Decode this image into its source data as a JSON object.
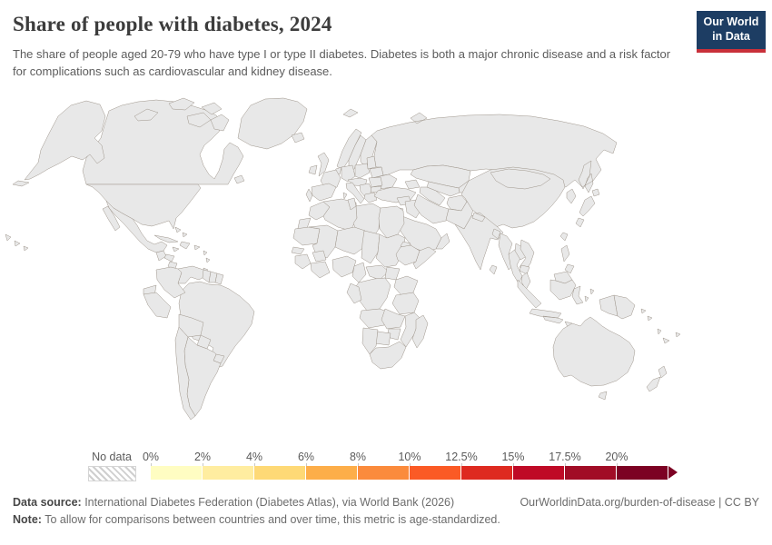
{
  "header": {
    "title": "Share of people with diabetes, 2024",
    "subtitle": "The share of people aged 20-79 who have type I or type II diabetes. Diabetes is both a major chronic disease and a risk factor for complications such as cardiovascular and kidney disease.",
    "logo": {
      "line1": "Our World",
      "line2": "in Data",
      "bg": "#1d3d63",
      "accent": "#c9303a"
    }
  },
  "legend": {
    "no_data_label": "No data",
    "tick_labels": [
      "0%",
      "2%",
      "4%",
      "6%",
      "8%",
      "10%",
      "12.5%",
      "15%",
      "17.5%",
      "20%"
    ],
    "palette": [
      "#fffdc2",
      "#ffeda0",
      "#fed976",
      "#fdae49",
      "#fb8b3c",
      "#fb5a25",
      "#de2a20",
      "#bf0a26",
      "#a10c26",
      "#7c0123"
    ]
  },
  "footer": {
    "source_label": "Data source:",
    "source_text": " International Diabetes Federation (Diabetes Atlas), via World Bank (2026)",
    "link_text": "OurWorldinData.org/burden-of-disease | CC BY",
    "note_label": "Note:",
    "note_text": " To allow for comparisons between countries and over time, this metric is age-standardized."
  },
  "chart_data": {
    "type": "choropleth-map",
    "title": "Share of people with diabetes, 2024",
    "unit": "% of people aged 20-79",
    "bins": [
      "0-2%",
      "2-4%",
      "4-6%",
      "6-8%",
      "8-10%",
      "10-12.5%",
      "12.5-15%",
      "15-17.5%",
      "17.5-20%",
      "20%+"
    ],
    "legend_position": "bottom",
    "regions_note": "bin is an index 0-9 into legend.palette; -1 means no data (hatched)"
  },
  "map": {
    "stroke": "#9d948a",
    "regions": [
      {
        "id": "greenland",
        "name": "Greenland",
        "bin": 2
      },
      {
        "id": "canada",
        "name": "Canada",
        "bin": 3
      },
      {
        "id": "canada-islands",
        "name": "Canada (Arctic islands)",
        "bin": 3
      },
      {
        "id": "svalbard",
        "name": "Svalbard",
        "bin": 3
      },
      {
        "id": "alaska",
        "name": "United States (Alaska)",
        "bin": 6
      },
      {
        "id": "usa",
        "name": "United States",
        "bin": 6
      },
      {
        "id": "hawaii",
        "name": "United States (Hawaii)",
        "bin": 6
      },
      {
        "id": "mexico",
        "name": "Mexico",
        "bin": 7
      },
      {
        "id": "guatemala",
        "name": "Guatemala",
        "bin": 7
      },
      {
        "id": "honduras",
        "name": "Honduras",
        "bin": 2
      },
      {
        "id": "nicaragua",
        "name": "Nicaragua",
        "bin": 4
      },
      {
        "id": "costa-panama",
        "name": "Costa Rica & Panama",
        "bin": 4
      },
      {
        "id": "cuba",
        "name": "Cuba",
        "bin": 5
      },
      {
        "id": "jamaica",
        "name": "Jamaica",
        "bin": 7
      },
      {
        "id": "hispaniola",
        "name": "Haiti & Dominican Republic",
        "bin": 8
      },
      {
        "id": "puerto-rico",
        "name": "Puerto Rico",
        "bin": 8
      },
      {
        "id": "bahamas",
        "name": "Bahamas",
        "bin": 3
      },
      {
        "id": "antilles",
        "name": "Lesser Antilles",
        "bin": 6
      },
      {
        "id": "trinidad",
        "name": "Trinidad and Tobago",
        "bin": 8
      },
      {
        "id": "colombia",
        "name": "Colombia",
        "bin": 4
      },
      {
        "id": "venezuela",
        "name": "Venezuela",
        "bin": 3
      },
      {
        "id": "guyana",
        "name": "Guyana",
        "bin": 8
      },
      {
        "id": "suriname",
        "name": "Suriname",
        "bin": -1
      },
      {
        "id": "french-guiana",
        "name": "French Guiana",
        "bin": 6
      },
      {
        "id": "ecuador",
        "name": "Ecuador",
        "bin": 1
      },
      {
        "id": "peru",
        "name": "Peru",
        "bin": 2
      },
      {
        "id": "brazil",
        "name": "Brazil",
        "bin": 5
      },
      {
        "id": "bolivia",
        "name": "Bolivia",
        "bin": 0
      },
      {
        "id": "paraguay",
        "name": "Paraguay",
        "bin": 4
      },
      {
        "id": "uruguay",
        "name": "Uruguay",
        "bin": 3
      },
      {
        "id": "argentina",
        "name": "Argentina",
        "bin": 6
      },
      {
        "id": "chile",
        "name": "Chile",
        "bin": 6
      },
      {
        "id": "iceland",
        "name": "Iceland",
        "bin": 3
      },
      {
        "id": "uk",
        "name": "United Kingdom",
        "bin": 3
      },
      {
        "id": "ireland",
        "name": "Ireland",
        "bin": 2
      },
      {
        "id": "norway",
        "name": "Norway",
        "bin": 3
      },
      {
        "id": "sweden",
        "name": "Sweden",
        "bin": 3
      },
      {
        "id": "finland",
        "name": "Finland",
        "bin": 3
      },
      {
        "id": "denmark",
        "name": "Denmark",
        "bin": 3
      },
      {
        "id": "benelux",
        "name": "Netherlands & Belgium",
        "bin": 4
      },
      {
        "id": "germany",
        "name": "Germany",
        "bin": 4
      },
      {
        "id": "poland",
        "name": "Poland",
        "bin": 4
      },
      {
        "id": "baltics",
        "name": "Baltic states",
        "bin": 3
      },
      {
        "id": "belarus",
        "name": "Belarus",
        "bin": 2
      },
      {
        "id": "ukraine",
        "name": "Ukraine",
        "bin": 2
      },
      {
        "id": "france",
        "name": "France",
        "bin": 3
      },
      {
        "id": "spain",
        "name": "Spain",
        "bin": 4
      },
      {
        "id": "portugal",
        "name": "Portugal",
        "bin": 5
      },
      {
        "id": "central-europe",
        "name": "Central Europe",
        "bin": 4
      },
      {
        "id": "italy",
        "name": "Italy",
        "bin": 4
      },
      {
        "id": "balkans",
        "name": "Balkans",
        "bin": 6
      },
      {
        "id": "romania",
        "name": "Romania",
        "bin": 4
      },
      {
        "id": "bulgaria",
        "name": "Bulgaria",
        "bin": 5
      },
      {
        "id": "greece",
        "name": "Greece",
        "bin": 4
      },
      {
        "id": "russia",
        "name": "Russia",
        "bin": 2
      },
      {
        "id": "kazakhstan",
        "name": "Kazakhstan",
        "bin": 2
      },
      {
        "id": "kyrgyz-tajik",
        "name": "Kyrgyzstan & Tajikistan",
        "bin": 3
      },
      {
        "id": "uzbekistan",
        "name": "Uzbekistan",
        "bin": 3
      },
      {
        "id": "turkmenistan",
        "name": "Turkmenistan",
        "bin": 4
      },
      {
        "id": "caucasus",
        "name": "Caucasus",
        "bin": 4
      },
      {
        "id": "turkey",
        "name": "Turkey",
        "bin": 7
      },
      {
        "id": "syria",
        "name": "Syria",
        "bin": 8
      },
      {
        "id": "jordan",
        "name": "Jordan & Israel",
        "bin": 8
      },
      {
        "id": "iraq",
        "name": "Iraq",
        "bin": 8
      },
      {
        "id": "saudi",
        "name": "Saudi Arabia",
        "bin": 9
      },
      {
        "id": "yemen",
        "name": "Yemen",
        "bin": 8
      },
      {
        "id": "oman",
        "name": "Oman & UAE",
        "bin": 7
      },
      {
        "id": "iran",
        "name": "Iran",
        "bin": 4
      },
      {
        "id": "afghanistan",
        "name": "Afghanistan",
        "bin": 4
      },
      {
        "id": "pakistan",
        "name": "Pakistan",
        "bin": 9
      },
      {
        "id": "india",
        "name": "India",
        "bin": 5
      },
      {
        "id": "nepal",
        "name": "Nepal",
        "bin": 3
      },
      {
        "id": "bangladesh",
        "name": "Bangladesh",
        "bin": 7
      },
      {
        "id": "sri-lanka",
        "name": "Sri Lanka",
        "bin": 6
      },
      {
        "id": "china",
        "name": "China",
        "bin": 5
      },
      {
        "id": "mongolia",
        "name": "Mongolia",
        "bin": 5
      },
      {
        "id": "korea",
        "name": "Korea",
        "bin": 4
      },
      {
        "id": "japan",
        "name": "Japan",
        "bin": 4
      },
      {
        "id": "taiwan",
        "name": "Taiwan",
        "bin": 4
      },
      {
        "id": "myanmar",
        "name": "Myanmar",
        "bin": 4
      },
      {
        "id": "thailand",
        "name": "Thailand",
        "bin": 4
      },
      {
        "id": "laos",
        "name": "Laos",
        "bin": 1
      },
      {
        "id": "vietnam",
        "name": "Vietnam",
        "bin": 1
      },
      {
        "id": "cambodia",
        "name": "Cambodia",
        "bin": 4
      },
      {
        "id": "malaysia",
        "name": "Malaysia",
        "bin": 9
      },
      {
        "id": "borneo-malaysia",
        "name": "Malaysia (Borneo)",
        "bin": 9
      },
      {
        "id": "indonesia",
        "name": "Indonesia",
        "bin": 6
      },
      {
        "id": "philippines",
        "name": "Philippines",
        "bin": 4
      },
      {
        "id": "new-guinea-west",
        "name": "Indonesia (Papua)",
        "bin": 6
      },
      {
        "id": "png",
        "name": "Papua New Guinea",
        "bin": 6
      },
      {
        "id": "solomons",
        "name": "Solomon Islands",
        "bin": 8
      },
      {
        "id": "vanuatu",
        "name": "Vanuatu",
        "bin": 8
      },
      {
        "id": "new-caledonia",
        "name": "New Caledonia",
        "bin": 8
      },
      {
        "id": "fiji",
        "name": "Fiji",
        "bin": 8
      },
      {
        "id": "australia",
        "name": "Australia",
        "bin": 3
      },
      {
        "id": "new-zealand",
        "name": "New Zealand",
        "bin": 3
      },
      {
        "id": "morocco",
        "name": "Morocco",
        "bin": 5
      },
      {
        "id": "algeria",
        "name": "Algeria",
        "bin": 7
      },
      {
        "id": "tunisia",
        "name": "Tunisia",
        "bin": 7
      },
      {
        "id": "libya",
        "name": "Libya",
        "bin": 7
      },
      {
        "id": "egypt",
        "name": "Egypt",
        "bin": 9
      },
      {
        "id": "western-sahara",
        "name": "Western Sahara",
        "bin": -1
      },
      {
        "id": "mauritania",
        "name": "Mauritania",
        "bin": 1
      },
      {
        "id": "mali",
        "name": "Mali",
        "bin": 0
      },
      {
        "id": "niger",
        "name": "Niger",
        "bin": 0
      },
      {
        "id": "chad",
        "name": "Chad",
        "bin": 1
      },
      {
        "id": "sudan",
        "name": "Sudan",
        "bin": 9
      },
      {
        "id": "eritrea",
        "name": "Eritrea",
        "bin": 2
      },
      {
        "id": "ethiopia",
        "name": "Ethiopia",
        "bin": 1
      },
      {
        "id": "somalia",
        "name": "Somalia",
        "bin": 1
      },
      {
        "id": "senegal",
        "name": "Senegal",
        "bin": 1
      },
      {
        "id": "guinea",
        "name": "Guinea",
        "bin": 0
      },
      {
        "id": "burkina",
        "name": "Burkina Faso",
        "bin": 0
      },
      {
        "id": "cote-ghana",
        "name": "Cote d'Ivoire & Ghana",
        "bin": 1
      },
      {
        "id": "nigeria",
        "name": "Nigeria",
        "bin": 2
      },
      {
        "id": "cameroon",
        "name": "Cameroon",
        "bin": 3
      },
      {
        "id": "car",
        "name": "Central African Republic",
        "bin": 3
      },
      {
        "id": "south-sudan",
        "name": "South Sudan",
        "bin": 4
      },
      {
        "id": "uganda-kenya",
        "name": "Uganda & Kenya",
        "bin": 1
      },
      {
        "id": "drc",
        "name": "Democratic Republic of Congo",
        "bin": 2
      },
      {
        "id": "gabon-congo",
        "name": "Gabon & Congo",
        "bin": 4
      },
      {
        "id": "tanzania",
        "name": "Tanzania",
        "bin": 4
      },
      {
        "id": "angola",
        "name": "Angola",
        "bin": 2
      },
      {
        "id": "zambia",
        "name": "Zambia",
        "bin": 5
      },
      {
        "id": "mozambique",
        "name": "Mozambique & Malawi",
        "bin": 1
      },
      {
        "id": "zimbabwe",
        "name": "Zimbabwe",
        "bin": 0
      },
      {
        "id": "botswana",
        "name": "Botswana",
        "bin": 2
      },
      {
        "id": "namibia",
        "name": "Namibia",
        "bin": 2
      },
      {
        "id": "south-africa",
        "name": "South Africa",
        "bin": 4
      },
      {
        "id": "madagascar",
        "name": "Madagascar",
        "bin": 2
      }
    ]
  }
}
